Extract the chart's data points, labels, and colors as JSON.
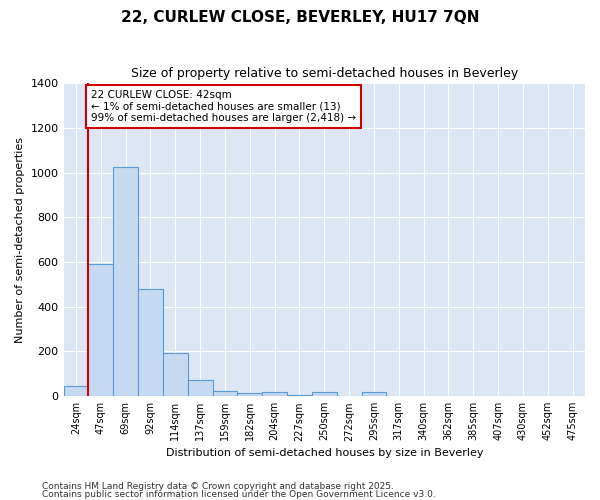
{
  "title1": "22, CURLEW CLOSE, BEVERLEY, HU17 7QN",
  "title2": "Size of property relative to semi-detached houses in Beverley",
  "xlabel": "Distribution of semi-detached houses by size in Beverley",
  "ylabel": "Number of semi-detached properties",
  "categories": [
    "24sqm",
    "47sqm",
    "69sqm",
    "92sqm",
    "114sqm",
    "137sqm",
    "159sqm",
    "182sqm",
    "204sqm",
    "227sqm",
    "250sqm",
    "272sqm",
    "295sqm",
    "317sqm",
    "340sqm",
    "362sqm",
    "385sqm",
    "407sqm",
    "430sqm",
    "452sqm",
    "475sqm"
  ],
  "values": [
    45,
    590,
    1025,
    480,
    195,
    73,
    22,
    14,
    18,
    5,
    18,
    3,
    18,
    0,
    0,
    0,
    0,
    0,
    0,
    0,
    0
  ],
  "bar_color": "#c5d9f1",
  "bar_edge_color": "#5b9bd5",
  "plot_bg_color": "#dce6f5",
  "fig_bg_color": "#ffffff",
  "grid_color": "#ffffff",
  "annotation_text": "22 CURLEW CLOSE: 42sqm\n← 1% of semi-detached houses are smaller (13)\n99% of semi-detached houses are larger (2,418) →",
  "annotation_box_color": "#ffffff",
  "annotation_box_edge": "#cc0000",
  "red_line_color": "#cc0000",
  "ylim": [
    0,
    1400
  ],
  "yticks": [
    0,
    200,
    400,
    600,
    800,
    1000,
    1200,
    1400
  ],
  "footer1": "Contains HM Land Registry data © Crown copyright and database right 2025.",
  "footer2": "Contains public sector information licensed under the Open Government Licence v3.0."
}
